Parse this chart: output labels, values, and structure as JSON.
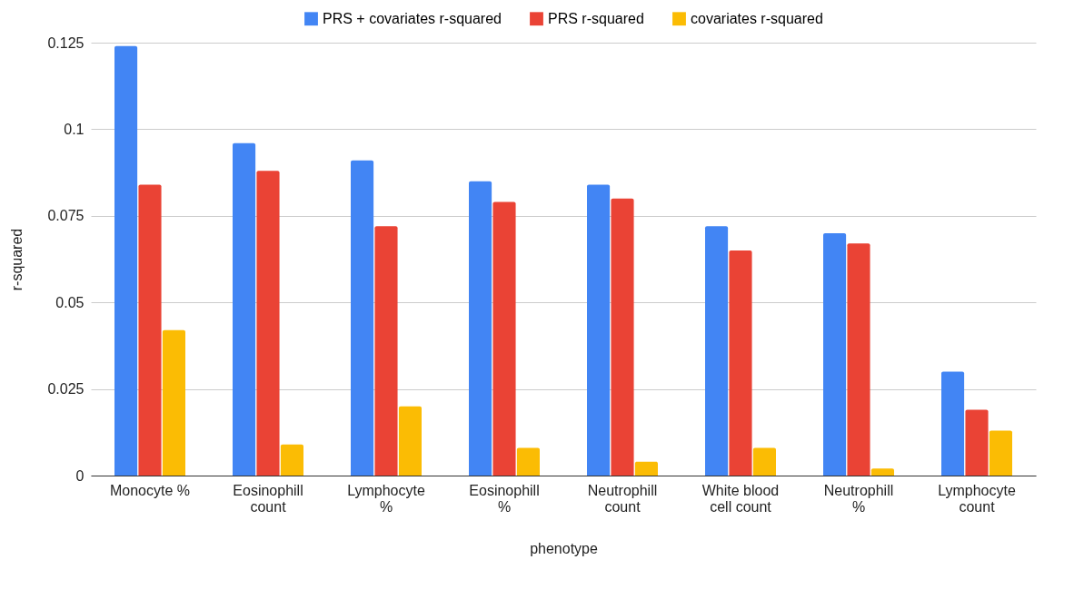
{
  "chart_data": {
    "type": "bar",
    "xlabel": "phenotype",
    "ylabel": "r-squared",
    "categories": [
      "Monocyte %",
      "Eosinophill count",
      "Lymphocyte %",
      "Eosinophill %",
      "Neutrophill count",
      "White blood cell count",
      "Neutrophill %",
      "Lymphocyte count"
    ],
    "series": [
      {
        "name": "PRS + covariates r-squared",
        "color": "#4285f4",
        "values": [
          0.124,
          0.096,
          0.091,
          0.085,
          0.084,
          0.072,
          0.07,
          0.03
        ]
      },
      {
        "name": "PRS r-squared",
        "color": "#ea4335",
        "values": [
          0.084,
          0.088,
          0.072,
          0.079,
          0.08,
          0.065,
          0.067,
          0.019
        ]
      },
      {
        "name": "covariates r-squared",
        "color": "#fbbc04",
        "values": [
          0.042,
          0.009,
          0.02,
          0.008,
          0.004,
          0.008,
          0.002,
          0.013
        ]
      }
    ],
    "ylim": [
      0,
      0.125
    ],
    "yticks": [
      0,
      0.025,
      0.05,
      0.075,
      0.1,
      0.125
    ],
    "grid": "y",
    "legend": "top"
  }
}
